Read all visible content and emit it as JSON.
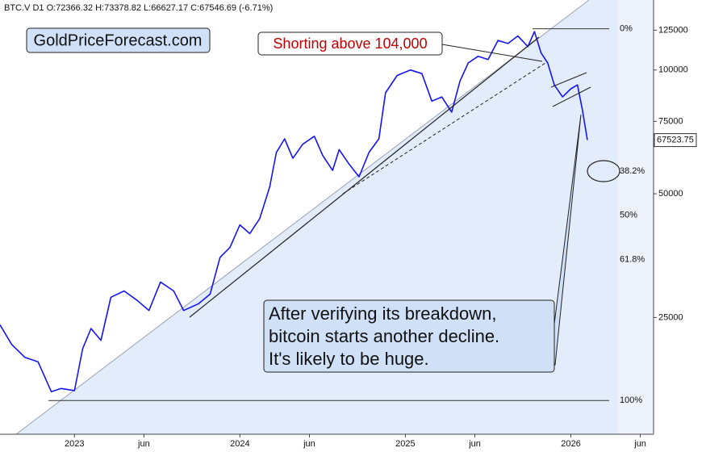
{
  "chart_data": {
    "type": "line",
    "header": "BTC.V  D1  O:72366.32 H:73378.82 L:66627.17 C:67546.69 (-6.71%)",
    "watermark": "GoldPriceForecast.com",
    "annotations": [
      "Shorting above 104,000",
      "After verifying its breakdown,",
      "bitcoin starts another decline.",
      "It's likely to be huge."
    ],
    "log_scale": true,
    "color": "#1515f0",
    "x": [
      2022.55,
      2022.62,
      2022.7,
      2022.78,
      2022.86,
      2022.92,
      2023.0,
      2023.05,
      2023.1,
      2023.16,
      2023.22,
      2023.3,
      2023.38,
      2023.45,
      2023.52,
      2023.6,
      2023.66,
      2023.75,
      2023.82,
      2023.88,
      2023.94,
      2024.0,
      2024.06,
      2024.12,
      2024.18,
      2024.22,
      2024.27,
      2024.32,
      2024.38,
      2024.45,
      2024.5,
      2024.56,
      2024.6,
      2024.66,
      2024.72,
      2024.78,
      2024.84,
      2024.88,
      2024.95,
      2025.03,
      2025.1,
      2025.16,
      2025.22,
      2025.28,
      2025.33,
      2025.38,
      2025.44,
      2025.5,
      2025.56,
      2025.62,
      2025.68,
      2025.74,
      2025.78,
      2025.82,
      2025.86,
      2025.9,
      2025.95,
      2026.0,
      2026.04,
      2026.07,
      2026.1
    ],
    "values": [
      24000,
      21500,
      20000,
      19500,
      16500,
      16800,
      16600,
      21000,
      23500,
      22000,
      28000,
      29000,
      27500,
      26000,
      30500,
      29000,
      26000,
      27000,
      28500,
      35000,
      37000,
      42000,
      40000,
      43500,
      52000,
      63000,
      68000,
      61000,
      66000,
      69000,
      62000,
      57000,
      64000,
      59000,
      55000,
      63000,
      68000,
      88000,
      97000,
      100000,
      98000,
      84000,
      86000,
      79000,
      94000,
      104000,
      108000,
      106000,
      118000,
      116000,
      121000,
      114000,
      124000,
      110000,
      104000,
      92000,
      86000,
      90000,
      92000,
      80000,
      67546.69
    ],
    "xlim": [
      2022.55,
      2026.5
    ],
    "xticks": [
      {
        "value": 2023,
        "label": "2023"
      },
      {
        "value": 2023.42,
        "label": "jun"
      },
      {
        "value": 2024,
        "label": "2024"
      },
      {
        "value": 2024.42,
        "label": "jun"
      },
      {
        "value": 2025,
        "label": "2025"
      },
      {
        "value": 2025.42,
        "label": "jun"
      },
      {
        "value": 2026,
        "label": "2026"
      },
      {
        "value": 2026.42,
        "label": "jun"
      }
    ],
    "ylim": [
      13000,
      148000
    ],
    "yticks": [
      25000,
      50000,
      75000,
      100000,
      125000
    ],
    "last_price": 67523.75,
    "fib_levels": [
      {
        "label": "0%",
        "value": 126000,
        "line": true
      },
      {
        "label": "38.2%",
        "value": 56700,
        "line": false
      },
      {
        "label": "50%",
        "value": 44300,
        "line": false
      },
      {
        "label": "61.8%",
        "value": 34600,
        "line": false
      },
      {
        "label": "100%",
        "value": 15700,
        "line": true
      }
    ]
  }
}
